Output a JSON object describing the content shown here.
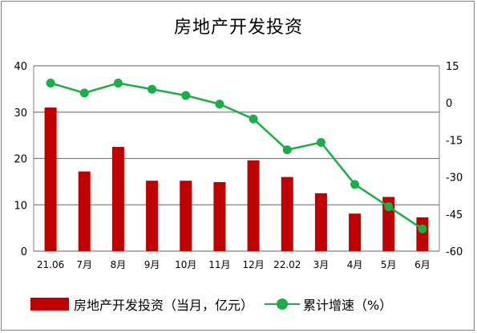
{
  "chart_data": {
    "type": "bar+line",
    "title": "房地产开发投资",
    "categories": [
      "21.06",
      "7月",
      "8月",
      "9月",
      "10月",
      "11月",
      "12月",
      "22.02",
      "3月",
      "4月",
      "5月",
      "6月"
    ],
    "series": [
      {
        "name": "房地产开发投资（当月，亿元）",
        "type": "bar",
        "axis": "left",
        "color": "#c00000",
        "values": [
          31.0,
          17.2,
          22.5,
          15.2,
          15.2,
          14.9,
          19.6,
          16.0,
          12.5,
          8.1,
          11.7,
          7.3
        ]
      },
      {
        "name": "累计增速（%）",
        "type": "line",
        "axis": "right",
        "color": "#1aae46",
        "values": [
          8,
          4,
          8,
          5.5,
          3,
          -0.5,
          -6.5,
          -19,
          -16,
          -33,
          -42,
          -51
        ]
      }
    ],
    "left_axis": {
      "min": 0,
      "max": 40,
      "ticks": [
        "0",
        "10",
        "20",
        "30",
        "40"
      ]
    },
    "right_axis": {
      "min": -60,
      "max": 15,
      "ticks": [
        "15",
        "0",
        "-15",
        "-30",
        "-45",
        "-60"
      ]
    },
    "grid": true,
    "legend_position": "bottom"
  }
}
